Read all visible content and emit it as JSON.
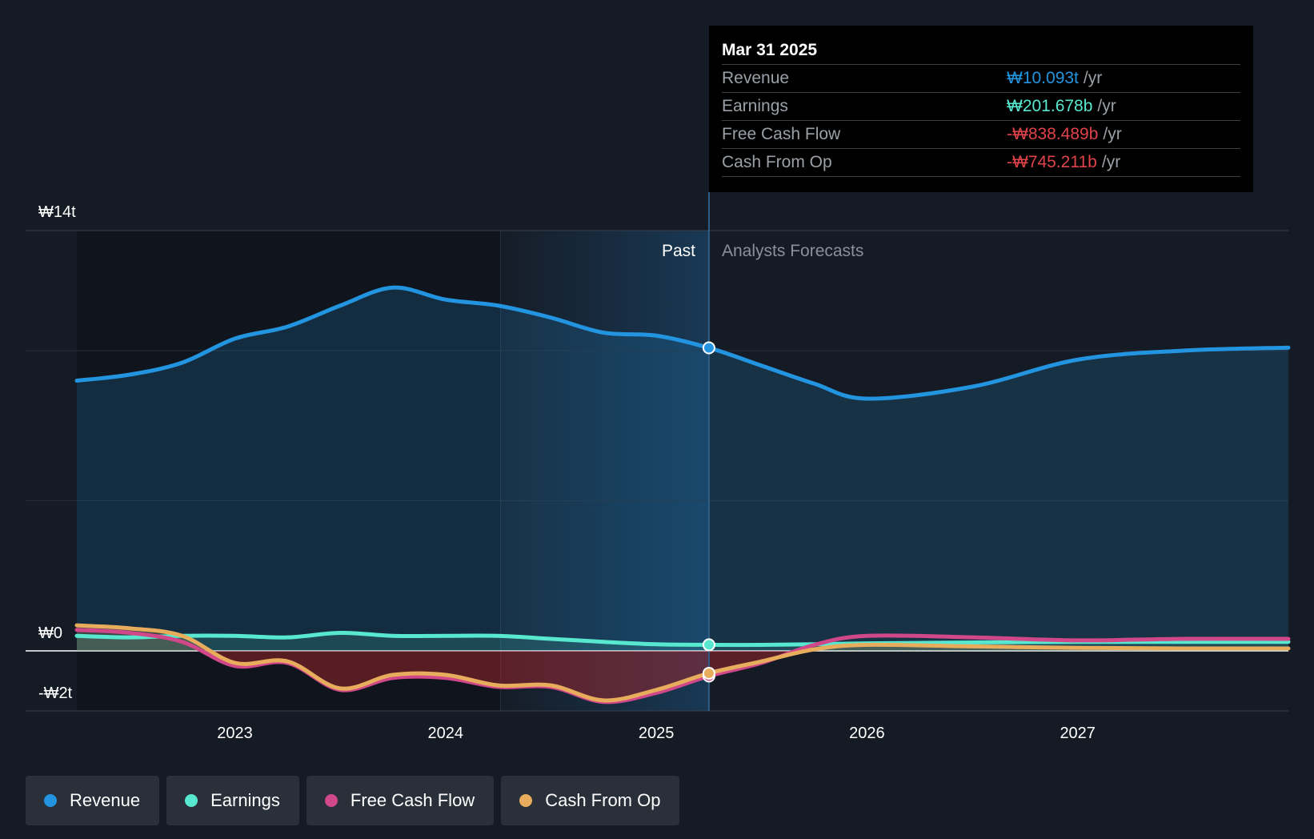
{
  "chart_data": {
    "type": "line",
    "currency_unit": "₩",
    "y_axis_labels": [
      "₩14t",
      "₩0",
      "-₩2t"
    ],
    "ylim": [
      -2,
      14
    ],
    "x_axis_ticks": [
      "2023",
      "2024",
      "2025",
      "2026",
      "2027"
    ],
    "region_labels": {
      "past": "Past",
      "forecast": "Analysts Forecasts"
    },
    "series": [
      {
        "name": "Revenue",
        "color": "#2394df",
        "points": [
          [
            2022.25,
            9.0
          ],
          [
            2022.5,
            9.2
          ],
          [
            2022.75,
            9.6
          ],
          [
            2023.0,
            10.4
          ],
          [
            2023.25,
            10.8
          ],
          [
            2023.5,
            11.5
          ],
          [
            2023.75,
            12.1
          ],
          [
            2024.0,
            11.7
          ],
          [
            2024.25,
            11.5
          ],
          [
            2024.5,
            11.1
          ],
          [
            2024.75,
            10.6
          ],
          [
            2025.0,
            10.5
          ],
          [
            2025.25,
            10.093
          ],
          [
            2025.5,
            9.5
          ],
          [
            2025.75,
            8.9
          ],
          [
            2026.0,
            8.4
          ],
          [
            2026.5,
            8.8
          ],
          [
            2027.0,
            9.7
          ],
          [
            2027.5,
            10.0
          ],
          [
            2028.0,
            10.1
          ]
        ]
      },
      {
        "name": "Earnings",
        "color": "#58e8cf",
        "points": [
          [
            2022.25,
            0.5
          ],
          [
            2022.5,
            0.45
          ],
          [
            2022.75,
            0.5
          ],
          [
            2023.0,
            0.5
          ],
          [
            2023.25,
            0.45
          ],
          [
            2023.5,
            0.6
          ],
          [
            2023.75,
            0.5
          ],
          [
            2024.0,
            0.5
          ],
          [
            2024.25,
            0.5
          ],
          [
            2024.5,
            0.4
          ],
          [
            2024.75,
            0.3
          ],
          [
            2025.0,
            0.22
          ],
          [
            2025.25,
            0.201678
          ],
          [
            2025.5,
            0.2
          ],
          [
            2025.75,
            0.22
          ],
          [
            2026.0,
            0.25
          ],
          [
            2026.5,
            0.28
          ],
          [
            2027.0,
            0.3
          ],
          [
            2027.5,
            0.3
          ],
          [
            2028.0,
            0.3
          ]
        ]
      },
      {
        "name": "Free Cash Flow",
        "color": "#d0478a",
        "points": [
          [
            2022.25,
            0.7
          ],
          [
            2022.5,
            0.6
          ],
          [
            2022.75,
            0.3
          ],
          [
            2023.0,
            -0.5
          ],
          [
            2023.25,
            -0.4
          ],
          [
            2023.5,
            -1.3
          ],
          [
            2023.75,
            -0.9
          ],
          [
            2024.0,
            -0.9
          ],
          [
            2024.25,
            -1.2
          ],
          [
            2024.5,
            -1.2
          ],
          [
            2024.75,
            -1.7
          ],
          [
            2025.0,
            -1.4
          ],
          [
            2025.25,
            -0.838489
          ],
          [
            2025.5,
            -0.4
          ],
          [
            2025.75,
            0.2
          ],
          [
            2026.0,
            0.5
          ],
          [
            2026.5,
            0.45
          ],
          [
            2027.0,
            0.35
          ],
          [
            2027.5,
            0.4
          ],
          [
            2028.0,
            0.4
          ]
        ]
      },
      {
        "name": "Cash From Op",
        "color": "#e8ad5c",
        "points": [
          [
            2022.25,
            0.85
          ],
          [
            2022.5,
            0.75
          ],
          [
            2022.75,
            0.5
          ],
          [
            2023.0,
            -0.4
          ],
          [
            2023.25,
            -0.35
          ],
          [
            2023.5,
            -1.25
          ],
          [
            2023.75,
            -0.8
          ],
          [
            2024.0,
            -0.8
          ],
          [
            2024.25,
            -1.15
          ],
          [
            2024.5,
            -1.15
          ],
          [
            2024.75,
            -1.65
          ],
          [
            2025.0,
            -1.3
          ],
          [
            2025.25,
            -0.745211
          ],
          [
            2025.5,
            -0.35
          ],
          [
            2025.75,
            0.05
          ],
          [
            2026.0,
            0.2
          ],
          [
            2026.5,
            0.15
          ],
          [
            2027.0,
            0.1
          ],
          [
            2027.5,
            0.08
          ],
          [
            2028.0,
            0.08
          ]
        ]
      }
    ],
    "highlight_date": 2025.25
  },
  "tooltip": {
    "date": "Mar 31 2025",
    "unit": "/yr",
    "rows": [
      {
        "name": "Revenue",
        "value": "₩10.093t",
        "color": "#2394df"
      },
      {
        "name": "Earnings",
        "value": "₩201.678b",
        "color": "#58e8cf"
      },
      {
        "name": "Free Cash Flow",
        "value": "-₩838.489b",
        "color": "#e0434b"
      },
      {
        "name": "Cash From Op",
        "value": "-₩745.211b",
        "color": "#e0434b"
      }
    ]
  },
  "legend": [
    {
      "label": "Revenue",
      "color": "#2394df"
    },
    {
      "label": "Earnings",
      "color": "#58e8cf"
    },
    {
      "label": "Free Cash Flow",
      "color": "#d0478a"
    },
    {
      "label": "Cash From Op",
      "color": "#e8ad5c"
    }
  ]
}
